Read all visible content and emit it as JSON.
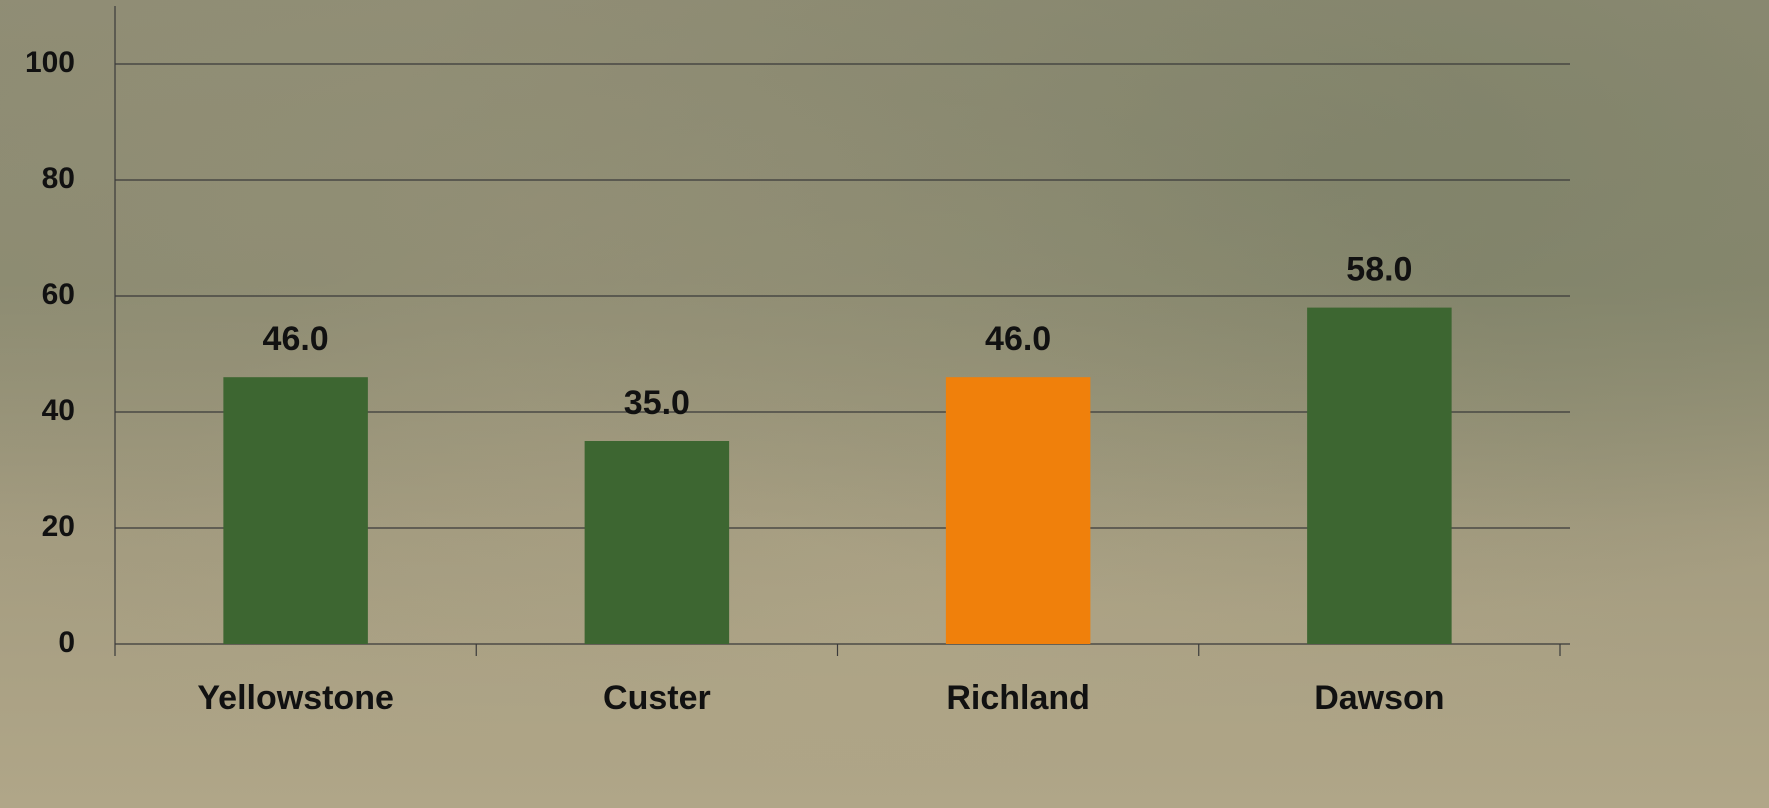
{
  "chart_data": {
    "type": "bar",
    "categories": [
      "Yellowstone",
      "Custer",
      "Richland",
      "Dawson"
    ],
    "values": [
      46,
      35,
      46,
      58
    ],
    "value_labels": [
      "46.0",
      "35.0",
      "46.0",
      "58.0"
    ],
    "colors": [
      "#3d6631",
      "#3d6631",
      "#f0800b",
      "#3d6631"
    ],
    "ylim": [
      0,
      110
    ],
    "yticks": [
      0,
      20,
      40,
      60,
      80,
      100
    ],
    "grid": true
  }
}
